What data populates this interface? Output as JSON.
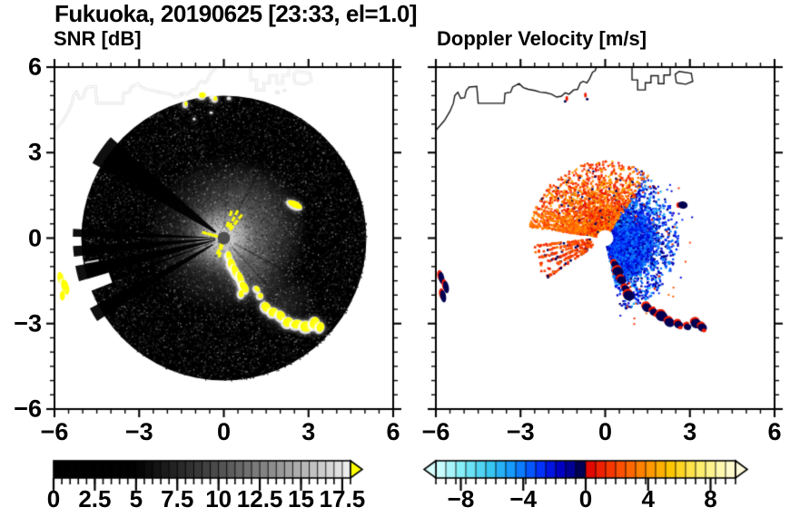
{
  "title": "Fukuoka, 20190625 [23:33, el=1.0]",
  "panels": {
    "snr": {
      "subtitle": "SNR [dB]",
      "x_tick_values": [
        -6,
        -3,
        0,
        3,
        6
      ],
      "x_tick_labels": [
        "−6",
        "−3",
        "0",
        "3",
        "6"
      ],
      "y_tick_values": [
        6,
        3,
        0,
        -3,
        -6
      ],
      "y_tick_labels": [
        "6",
        "3",
        "0",
        "−3",
        "−6"
      ],
      "minor_tick_step": 0.5,
      "axis_range": [
        -6,
        6
      ]
    },
    "doppler": {
      "subtitle": "Doppler Velocity [m/s]",
      "x_tick_values": [
        -6,
        -3,
        0,
        3,
        6
      ],
      "x_tick_labels": [
        "−6",
        "−3",
        "0",
        "3",
        "6"
      ],
      "minor_tick_step": 0.5,
      "axis_range": [
        -6,
        6
      ]
    }
  },
  "colorbars": {
    "snr": {
      "range": [
        0,
        18
      ],
      "segment_step": 0.5,
      "tick_values": [
        0,
        2.5,
        5,
        7.5,
        10,
        12.5,
        15,
        17.5
      ],
      "tick_labels": [
        "0",
        "2.5",
        "5",
        "7.5",
        "10",
        "12.5",
        "15",
        "17.5"
      ],
      "stops": [
        [
          0,
          "#000000"
        ],
        [
          5,
          "#020202"
        ],
        [
          9,
          "#3c3c3c"
        ],
        [
          13,
          "#888888"
        ],
        [
          18,
          "#f0f0f0"
        ]
      ],
      "over_arrow_color": "#ffff00"
    },
    "doppler": {
      "range": [
        -9.6,
        9.6
      ],
      "segment_step": 0.64,
      "tick_values": [
        -8,
        -4,
        0,
        4,
        8
      ],
      "tick_labels": [
        "−8",
        "−4",
        "0",
        "4",
        "8"
      ],
      "stops": [
        [
          -9.6,
          "#d9ffff"
        ],
        [
          -8,
          "#86eef6"
        ],
        [
          -6,
          "#33c4f1"
        ],
        [
          -4.5,
          "#0f8fff"
        ],
        [
          -3,
          "#0038ff"
        ],
        [
          -1.8,
          "#0000d0"
        ],
        [
          -0.9,
          "#000090"
        ],
        [
          -0.05,
          "#000038"
        ],
        [
          0.05,
          "#dc0000"
        ],
        [
          1.2,
          "#f32800"
        ],
        [
          2.5,
          "#ff5a00"
        ],
        [
          4,
          "#ff9300"
        ],
        [
          5.5,
          "#ffc800"
        ],
        [
          7,
          "#ffe95a"
        ],
        [
          8.5,
          "#fff8a8"
        ],
        [
          9.6,
          "#fffbda"
        ]
      ],
      "under_arrow_color": "#d9ffff",
      "over_arrow_color": "#fffbda"
    }
  },
  "chart_data": [
    {
      "type": "heatmap",
      "subtype": "radar_ppi",
      "panel": "snr",
      "title": "SNR [dB]",
      "units": "dB",
      "x_range_km": [
        -6,
        6
      ],
      "y_range_km": [
        -6,
        6
      ],
      "scan_radius_km": 5.05,
      "colorbar_range": [
        0,
        18
      ],
      "colorbar_ticks": [
        0,
        2.5,
        5,
        7.5,
        10,
        12.5,
        15,
        17.5
      ],
      "features": {
        "coastline_color": "#ffffff",
        "center_glow": [
          [
            0.15,
            0.1,
            2.9,
            0.34
          ],
          [
            0.75,
            0.45,
            2.2,
            0.22
          ],
          [
            0,
            0,
            1.15,
            0.8
          ],
          [
            -0.5,
            -0.1,
            1.3,
            0.2
          ],
          [
            0.9,
            -1.2,
            1.3,
            0.2
          ],
          [
            2.1,
            -2.3,
            1.2,
            0.15
          ]
        ],
        "blocked_wedges": [
          [
            138.5,
            150.5,
            0.35
          ],
          [
            176.5,
            179.5,
            0.3
          ],
          [
            183,
            187,
            0.3
          ],
          [
            190.5,
            196.5,
            0.3
          ],
          [
            199.5,
            201.2,
            0.4
          ],
          [
            207.5,
            213,
            0.45
          ]
        ],
        "white_notch_wedge": [
          196.5,
          201.5,
          4.25
        ],
        "dark_rays": [
          [
            62,
            0.5,
            5.0,
            0.25
          ],
          [
            86,
            0.4,
            5.0,
            0.2
          ],
          [
            -28,
            0.4,
            2.6,
            0.3
          ],
          [
            -47,
            0.4,
            2.2,
            0.25
          ],
          [
            -62,
            0.4,
            2.0,
            0.2
          ]
        ],
        "noise_speckles": 9000,
        "clutter_blobs_yellow": [
          [
            0.18,
            -0.62,
            0.09,
            0.15,
            10
          ],
          [
            0.28,
            -0.92,
            0.13,
            0.21,
            15
          ],
          [
            0.42,
            -1.18,
            0.12,
            0.25,
            20
          ],
          [
            0.6,
            -1.45,
            0.11,
            0.27,
            15
          ],
          [
            0.72,
            -1.72,
            0.13,
            0.21,
            30
          ],
          [
            0.62,
            -1.95,
            0.09,
            0.13,
            0
          ],
          [
            1.18,
            -1.78,
            0.08,
            0.11,
            40
          ],
          [
            1.3,
            -2.02,
            0.09,
            0.09,
            0
          ],
          [
            1.5,
            -2.42,
            0.15,
            0.19,
            35
          ],
          [
            1.75,
            -2.6,
            0.17,
            0.15,
            30
          ],
          [
            2.02,
            -2.72,
            0.15,
            0.17,
            25
          ],
          [
            2.28,
            -2.95,
            0.19,
            0.17,
            20
          ],
          [
            2.6,
            -3.02,
            0.21,
            0.15,
            10
          ],
          [
            2.92,
            -3.1,
            0.21,
            0.19,
            5
          ],
          [
            3.22,
            -2.98,
            0.17,
            0.21,
            -15
          ],
          [
            3.42,
            -3.12,
            0.13,
            0.17,
            -20
          ],
          [
            -5.78,
            -1.42,
            0.11,
            0.24,
            10
          ],
          [
            -5.62,
            -1.72,
            0.13,
            0.28,
            15
          ],
          [
            -5.72,
            -2.02,
            0.09,
            0.17,
            0
          ],
          [
            2.52,
            1.18,
            0.27,
            0.11,
            -25
          ],
          [
            -0.76,
            5.02,
            0.12,
            0.1,
            0
          ],
          [
            -0.3,
            4.9,
            0.07,
            0.08,
            0
          ],
          [
            -1.34,
            4.72,
            0.05,
            0.09,
            0
          ]
        ],
        "yellow_dashes": [
          [
            52,
            0.45,
            0.95,
            3
          ],
          [
            63,
            0.5,
            1.0,
            3
          ],
          [
            74,
            0.5,
            0.9,
            2
          ],
          [
            165,
            0.3,
            0.7,
            3
          ],
          [
            247,
            0.28,
            0.52,
            2
          ],
          [
            256,
            0.33,
            0.6,
            2
          ]
        ],
        "echo_blobs_white": [
          [
            -1.5,
            5.05,
            0.1
          ],
          [
            -0.43,
            4.95,
            0.09
          ],
          [
            0.18,
            4.9,
            0.08
          ],
          [
            1.9,
            5.12,
            0.1
          ],
          [
            2.15,
            5.18,
            0.08
          ],
          [
            -0.45,
            4.4,
            0.06
          ],
          [
            -1.05,
            4.18,
            0.05
          ]
        ],
        "center_dot": [
          0.22,
          "#4e4e4e"
        ]
      }
    },
    {
      "type": "heatmap",
      "subtype": "radar_ppi",
      "panel": "doppler",
      "title": "Doppler Velocity [m/s]",
      "units": "m/s",
      "x_range_km": [
        -6,
        6
      ],
      "y_range_km": [
        -6,
        6
      ],
      "scan_radius_km": 5.05,
      "colorbar_range": [
        -9.6,
        9.6
      ],
      "colorbar_ticks": [
        -8,
        -4,
        0,
        4,
        8
      ],
      "features": {
        "coastline_color": "#151515",
        "red_fan": {
          "angle_deg": [
            55,
            172
          ],
          "radius_km": [
            0.28,
            2.7
          ],
          "count": 2400
        },
        "nw_streak_angles": [
          156,
          161,
          166,
          170.5
        ],
        "west_streak_angles": [
          186.5,
          191.5,
          196.5,
          202,
          208,
          213.5
        ],
        "blue_fan": {
          "angle_deg": [
            -78,
            58
          ],
          "radius_km": [
            0.3,
            2.6
          ],
          "count": 3000
        },
        "blue_core": {
          "angle_deg": [
            -70,
            30
          ],
          "radius_km": [
            0.3,
            1.7
          ],
          "count": 1700
        },
        "chain_blobs": [
          [
            0.34,
            -0.92
          ],
          [
            0.46,
            -1.18
          ],
          [
            0.58,
            -1.48
          ],
          [
            0.72,
            -1.78
          ],
          [
            0.84,
            -2.02
          ],
          [
            1.48,
            -2.44
          ],
          [
            1.72,
            -2.6
          ],
          [
            2.0,
            -2.74
          ],
          [
            2.28,
            -2.96
          ],
          [
            2.6,
            -3.04
          ],
          [
            2.92,
            -3.12
          ],
          [
            3.22,
            -3.0
          ],
          [
            3.44,
            -3.14
          ]
        ],
        "left_edge_blobs": [
          [
            -5.8,
            -1.4
          ],
          [
            -5.64,
            -1.72
          ],
          [
            -5.74,
            -2.04
          ]
        ],
        "isolated_blob": [
          2.72,
          1.16
        ],
        "coast_specks_red": [
          [
            -1.36,
            4.9
          ],
          [
            -0.7,
            5.02
          ]
        ],
        "coast_specks_navy": [
          [
            -1.42,
            4.8
          ],
          [
            -0.64,
            4.88
          ]
        ],
        "sparse_speckles": 70,
        "center_hole_radius_km": 0.29
      }
    }
  ],
  "coastline_km": [
    [
      [
        -6.0,
        3.78
      ],
      [
        -5.7,
        4.12
      ],
      [
        -5.5,
        4.45
      ],
      [
        -5.38,
        4.73
      ],
      [
        -5.33,
        5.0
      ],
      [
        -5.22,
        5.12
      ],
      [
        -5.12,
        4.9
      ],
      [
        -4.98,
        4.93
      ],
      [
        -4.92,
        5.18
      ],
      [
        -4.82,
        5.3
      ],
      [
        -4.55,
        5.32
      ],
      [
        -4.5,
        4.73
      ],
      [
        -3.58,
        4.73
      ],
      [
        -3.55,
        5.08
      ],
      [
        -3.35,
        5.12
      ],
      [
        -3.28,
        5.3
      ],
      [
        -3.05,
        5.42
      ],
      [
        -2.9,
        5.28
      ],
      [
        -2.72,
        5.22
      ],
      [
        -2.5,
        5.18
      ],
      [
        -2.3,
        5.12
      ],
      [
        -2.1,
        5.1
      ],
      [
        -1.9,
        5.05
      ],
      [
        -1.72,
        4.95
      ],
      [
        -1.55,
        4.98
      ],
      [
        -1.42,
        5.1
      ],
      [
        -1.28,
        5.05
      ],
      [
        -1.12,
        5.2
      ],
      [
        -0.98,
        5.22
      ],
      [
        -0.88,
        5.45
      ],
      [
        -0.78,
        5.5
      ],
      [
        -0.65,
        5.45
      ],
      [
        -0.55,
        5.6
      ],
      [
        -0.45,
        5.82
      ],
      [
        -0.35,
        5.88
      ],
      [
        -0.3,
        6.05
      ]
    ],
    [
      [
        0.95,
        6.05
      ],
      [
        0.95,
        5.55
      ],
      [
        1.15,
        5.55
      ],
      [
        1.15,
        5.2
      ],
      [
        1.42,
        5.2
      ],
      [
        1.42,
        5.45
      ],
      [
        1.62,
        5.45
      ],
      [
        1.62,
        5.7
      ],
      [
        1.88,
        5.7
      ],
      [
        1.88,
        5.42
      ],
      [
        2.08,
        5.42
      ],
      [
        2.08,
        5.72
      ],
      [
        2.3,
        5.72
      ],
      [
        2.3,
        6.05
      ]
    ],
    [
      [
        2.52,
        5.45
      ],
      [
        2.48,
        5.75
      ],
      [
        2.62,
        5.85
      ],
      [
        3.05,
        5.78
      ],
      [
        3.1,
        5.5
      ],
      [
        2.85,
        5.4
      ],
      [
        2.52,
        5.45
      ]
    ]
  ]
}
